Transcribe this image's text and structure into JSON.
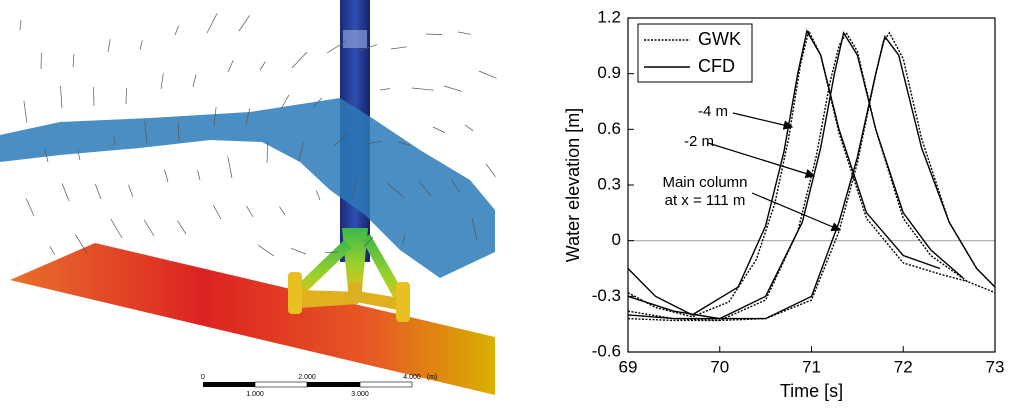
{
  "render": {
    "scale_bar": {
      "top_labels": [
        "0",
        "2.000",
        "4.000"
      ],
      "unit": "(m)",
      "bottom_labels": [
        "1.000",
        "3.000"
      ]
    }
  },
  "chart_data": {
    "type": "line",
    "xlabel": "Time [s]",
    "ylabel": "Water elevation [m]",
    "xlim": [
      69,
      73
    ],
    "xticks": [
      69,
      70,
      71,
      72,
      73
    ],
    "ylim": [
      -0.6,
      1.2
    ],
    "yticks": [
      -0.6,
      -0.3,
      0,
      0.3,
      0.6,
      0.9,
      1.2
    ],
    "zero_line_color": "#aaaaaa",
    "series": [
      {
        "name": "GWK",
        "color": "#000000",
        "dash": "dotted",
        "curves": [
          {
            "x": [
              69,
              69.3,
              69.7,
              70.1,
              70.4,
              70.6,
              70.75,
              70.88,
              70.97,
              71.1,
              71.3,
              71.6,
              72.0,
              72.4,
              72.7
            ],
            "values": [
              -0.28,
              -0.36,
              -0.41,
              -0.33,
              -0.1,
              0.2,
              0.55,
              0.95,
              1.13,
              1.0,
              0.58,
              0.12,
              -0.12,
              -0.18,
              -0.22
            ]
          },
          {
            "x": [
              69,
              69.5,
              70.0,
              70.5,
              70.85,
              71.05,
              71.2,
              71.3,
              71.38,
              71.5,
              71.7,
              72.0,
              72.3,
              72.7,
              73.0
            ],
            "values": [
              -0.38,
              -0.42,
              -0.43,
              -0.32,
              0.05,
              0.45,
              0.85,
              1.05,
              1.12,
              1.02,
              0.6,
              0.12,
              -0.08,
              -0.22,
              -0.28
            ]
          },
          {
            "x": [
              69,
              69.5,
              70.0,
              70.5,
              71.0,
              71.3,
              71.5,
              71.68,
              71.78,
              71.85,
              72.0,
              72.2,
              72.5,
              72.8,
              73.0
            ],
            "values": [
              -0.42,
              -0.43,
              -0.43,
              -0.42,
              -0.32,
              0.05,
              0.42,
              0.85,
              1.07,
              1.12,
              0.98,
              0.55,
              0.1,
              -0.15,
              -0.25
            ]
          }
        ]
      },
      {
        "name": "CFD",
        "color": "#000000",
        "dash": "solid",
        "curves": [
          {
            "x": [
              69,
              69.3,
              69.7,
              70.2,
              70.5,
              70.7,
              70.85,
              70.95,
              71.1,
              71.3,
              71.6,
              72.0,
              72.4
            ],
            "values": [
              -0.15,
              -0.3,
              -0.4,
              -0.25,
              0.08,
              0.48,
              0.9,
              1.13,
              1.0,
              0.6,
              0.15,
              -0.08,
              -0.15
            ]
          },
          {
            "x": [
              69,
              69.5,
              70.0,
              70.5,
              70.9,
              71.1,
              71.25,
              71.35,
              71.5,
              71.7,
              72.0,
              72.3,
              72.65
            ],
            "values": [
              -0.3,
              -0.38,
              -0.42,
              -0.3,
              0.1,
              0.5,
              0.9,
              1.12,
              1.0,
              0.6,
              0.15,
              -0.05,
              -0.2
            ]
          },
          {
            "x": [
              69,
              69.5,
              70.0,
              70.5,
              71.0,
              71.3,
              71.5,
              71.7,
              71.8,
              71.95,
              72.2,
              72.5,
              72.8,
              73.0
            ],
            "values": [
              -0.4,
              -0.42,
              -0.42,
              -0.42,
              -0.3,
              0.1,
              0.45,
              0.9,
              1.1,
              1.0,
              0.5,
              0.1,
              -0.15,
              -0.25
            ]
          }
        ]
      }
    ],
    "annotations": [
      {
        "lines": [
          "-4 m"
        ]
      },
      {
        "lines": [
          "-2 m"
        ]
      },
      {
        "lines": [
          "Main column",
          "at x = 111 m"
        ]
      }
    ]
  }
}
